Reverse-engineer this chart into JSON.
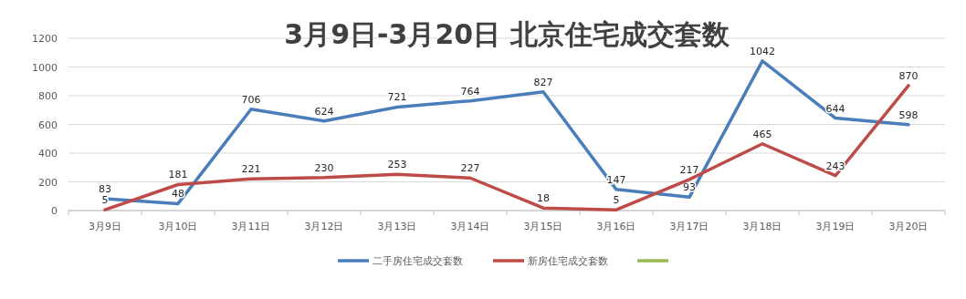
{
  "chart_data": {
    "type": "line",
    "title": "3月9日-3月20日 北京住宅成交套数",
    "categories": [
      "3月9日",
      "3月10日",
      "3月11日",
      "3月12日",
      "3月13日",
      "3月14日",
      "3月15日",
      "3月16日",
      "3月17日",
      "3月18日",
      "3月19日",
      "3月20日"
    ],
    "series": [
      {
        "name": "二手房住宅成交套数",
        "color": "#4a7ebb",
        "values": [
          83,
          48,
          706,
          624,
          721,
          764,
          827,
          147,
          93,
          1042,
          644,
          598
        ]
      },
      {
        "name": "新房住宅成交套数",
        "color": "#be4b48",
        "values": [
          5,
          181,
          221,
          230,
          253,
          227,
          18,
          5,
          217,
          465,
          243,
          870
        ]
      },
      {
        "color": "#98b954",
        "values": [
          null,
          null,
          null,
          null,
          null,
          null,
          null,
          null,
          null,
          null,
          null,
          null
        ]
      }
    ],
    "ylim": [
      0,
      1200
    ],
    "yticks": [
      0,
      200,
      400,
      600,
      800,
      1000,
      1200
    ],
    "grid": "y",
    "legend": "bottom",
    "data_labels": true,
    "marker": "none",
    "line_style": "solid"
  }
}
